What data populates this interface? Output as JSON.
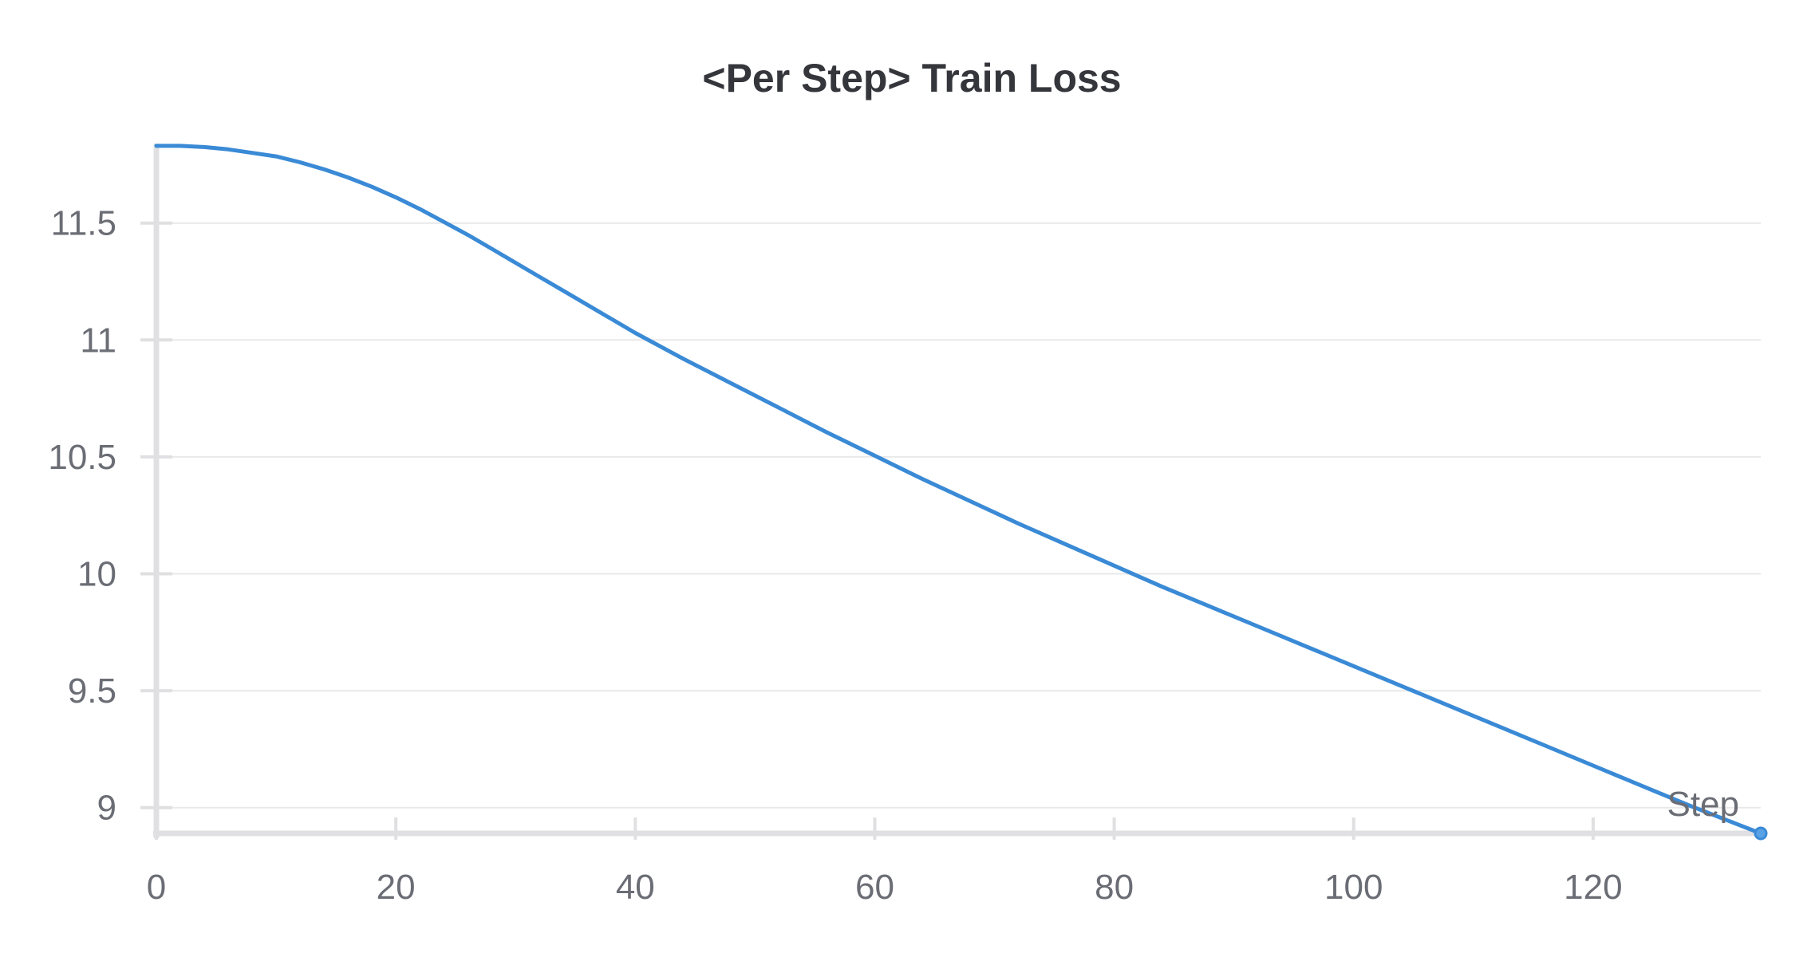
{
  "chart_data": {
    "type": "line",
    "title": "<Per Step> Train Loss",
    "xlabel": "Step",
    "ylabel": "",
    "xlim": [
      0,
      134
    ],
    "ylim": [
      8.89,
      11.84
    ],
    "x_ticks": [
      0,
      20,
      40,
      60,
      80,
      100,
      120
    ],
    "y_ticks": [
      9,
      9.5,
      10,
      10.5,
      11,
      11.5
    ],
    "y_tick_labels": [
      "9",
      "9.5",
      "10",
      "10.5",
      "11",
      "11.5"
    ],
    "grid": true,
    "legend": "none",
    "colors": {
      "line": "#3a8ad6",
      "axis": "#e0e0e2",
      "grid": "#e9e9ea",
      "text": "#6b6d75",
      "title": "#35363b"
    },
    "series": [
      {
        "x": [
          0,
          2,
          4,
          6,
          8,
          10,
          12,
          14,
          16,
          18,
          20,
          22,
          24,
          26,
          28,
          30,
          32,
          34,
          36,
          38,
          40,
          44,
          48,
          52,
          56,
          60,
          64,
          68,
          72,
          76,
          80,
          84,
          88,
          92,
          96,
          100,
          104,
          108,
          112,
          116,
          120,
          124,
          128,
          132,
          134
        ],
        "y": [
          11.83,
          11.83,
          11.825,
          11.815,
          11.8,
          11.785,
          11.76,
          11.73,
          11.695,
          11.655,
          11.61,
          11.56,
          11.505,
          11.45,
          11.39,
          11.33,
          11.27,
          11.21,
          11.15,
          11.09,
          11.03,
          10.92,
          10.815,
          10.71,
          10.605,
          10.505,
          10.405,
          10.31,
          10.215,
          10.125,
          10.035,
          9.945,
          9.86,
          9.775,
          9.69,
          9.605,
          9.52,
          9.435,
          9.35,
          9.265,
          9.18,
          9.095,
          9.01,
          8.93,
          8.89
        ]
      }
    ]
  }
}
